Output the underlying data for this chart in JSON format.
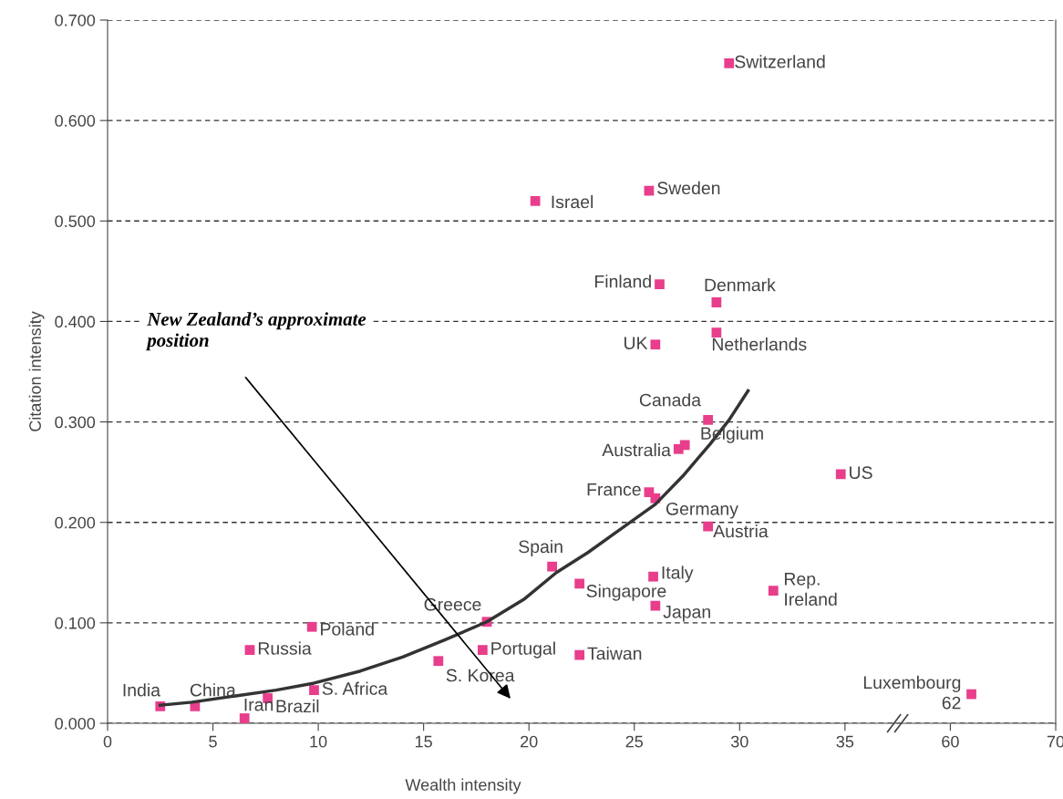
{
  "chart_data": [
    {
      "type": "scatter",
      "xlabel": "Wealth intensity",
      "ylabel": "Citation intensity",
      "xlim": [
        0,
        37.5
      ],
      "xticks": [
        0,
        5,
        10,
        15,
        20,
        25,
        30,
        35
      ],
      "ylim": [
        0,
        0.7
      ],
      "yticks": [
        {
          "value": 0,
          "label": "0.000"
        },
        {
          "value": 0.1,
          "label": "0.100"
        },
        {
          "value": 0.2,
          "label": "0.200"
        },
        {
          "value": 0.3,
          "label": "0.300"
        },
        {
          "value": 0.4,
          "label": "0.400"
        },
        {
          "value": 0.5,
          "label": "0.500"
        },
        {
          "value": 0.6,
          "label": "0.600"
        },
        {
          "value": 0.7,
          "label": "0.700"
        }
      ],
      "grid": "y",
      "marker": "square",
      "series": [
        {
          "color": "#e83e8c",
          "x": [
            2.5,
            4.15,
            6.5,
            7.6,
            6.75,
            9.7,
            9.8,
            15.7,
            18.0,
            17.8,
            22.4,
            21.1,
            22.4,
            25.9,
            26.0,
            31.6,
            34.8,
            25.7,
            26.0,
            28.5,
            27.1,
            27.4,
            28.5,
            26.0,
            28.9,
            26.2,
            28.9,
            20.3,
            25.7,
            29.5
          ],
          "values": [
            0.017,
            0.017,
            0.005,
            0.025,
            0.073,
            0.096,
            0.033,
            0.062,
            0.101,
            0.073,
            0.068,
            0.156,
            0.139,
            0.146,
            0.117,
            0.132,
            0.248,
            0.23,
            0.224,
            0.196,
            0.273,
            0.277,
            0.302,
            0.377,
            0.389,
            0.437,
            0.419,
            0.52,
            0.53,
            0.657
          ]
        },
        {
          "type": "line",
          "color": "#333333",
          "marker": "none",
          "x": [
            2.5,
            4.0,
            6.0,
            8.0,
            9.8,
            12.0,
            14.0,
            16.0,
            18.0,
            19.8,
            21.3,
            22.8,
            24.0,
            25.0,
            26.0,
            27.3,
            28.6,
            29.5,
            30.4
          ],
          "values": [
            0.018,
            0.021,
            0.027,
            0.033,
            0.04,
            0.052,
            0.066,
            0.083,
            0.101,
            0.124,
            0.15,
            0.17,
            0.188,
            0.203,
            0.218,
            0.246,
            0.278,
            0.302,
            0.331
          ]
        }
      ],
      "annotations": [
        {
          "text": "India",
          "x": 2.5,
          "y": 0.017
        },
        {
          "text": "China",
          "x": 4.15,
          "y": 0.017
        },
        {
          "text": "Iran",
          "x": 6.5,
          "y": 0.005
        },
        {
          "text": "Brazil",
          "x": 7.6,
          "y": 0.025
        },
        {
          "text": "Russia",
          "x": 6.75,
          "y": 0.073
        },
        {
          "text": "Poland",
          "x": 9.7,
          "y": 0.096
        },
        {
          "text": "S. Africa",
          "x": 9.8,
          "y": 0.033
        },
        {
          "text": "S. Korea",
          "x": 15.7,
          "y": 0.062
        },
        {
          "text": "Greece",
          "x": 18.0,
          "y": 0.101
        },
        {
          "text": "Portugal",
          "x": 17.8,
          "y": 0.073
        },
        {
          "text": "Taiwan",
          "x": 22.4,
          "y": 0.068
        },
        {
          "text": "Spain",
          "x": 21.1,
          "y": 0.156
        },
        {
          "text": "Singapore",
          "x": 22.4,
          "y": 0.139
        },
        {
          "text": "Italy",
          "x": 25.9,
          "y": 0.146
        },
        {
          "text": "Japan",
          "x": 26.0,
          "y": 0.117
        },
        {
          "text": "Rep.\nIreland",
          "x": 31.6,
          "y": 0.132
        },
        {
          "text": "US",
          "x": 34.8,
          "y": 0.248
        },
        {
          "text": "France",
          "x": 25.7,
          "y": 0.23
        },
        {
          "text": "Germany",
          "x": 26.0,
          "y": 0.224
        },
        {
          "text": "Austria",
          "x": 28.5,
          "y": 0.196
        },
        {
          "text": "Australia",
          "x": 27.1,
          "y": 0.273
        },
        {
          "text": "Belgium",
          "x": 27.4,
          "y": 0.277
        },
        {
          "text": "Canada",
          "x": 28.5,
          "y": 0.302
        },
        {
          "text": "UK",
          "x": 26.0,
          "y": 0.377
        },
        {
          "text": "Netherlands",
          "x": 28.9,
          "y": 0.389
        },
        {
          "text": "Finland",
          "x": 26.2,
          "y": 0.437
        },
        {
          "text": "Denmark",
          "x": 28.9,
          "y": 0.419
        },
        {
          "text": "Israel",
          "x": 20.3,
          "y": 0.52
        },
        {
          "text": "Sweden",
          "x": 25.7,
          "y": 0.53
        },
        {
          "text": "Switzerland",
          "x": 29.5,
          "y": 0.657
        },
        "New Zealand’s approximate\nposition"
      ]
    },
    {
      "type": "scatter",
      "xlim": [
        55,
        70
      ],
      "xticks": [
        60,
        70
      ],
      "ylim": [
        0,
        0.7
      ],
      "yticks": [
        0,
        0.1,
        0.2,
        0.3,
        0.4,
        0.5,
        0.6,
        0.7
      ],
      "tick_labels": "x",
      "grid": "y",
      "marker": "square",
      "series": [
        {
          "color": "#e83e8c",
          "x": [
            62
          ],
          "values": [
            0.029
          ]
        }
      ],
      "annotations": [
        {
          "text": "Luxembourg\n62",
          "x": 62,
          "y": 0.029
        }
      ]
    }
  ]
}
